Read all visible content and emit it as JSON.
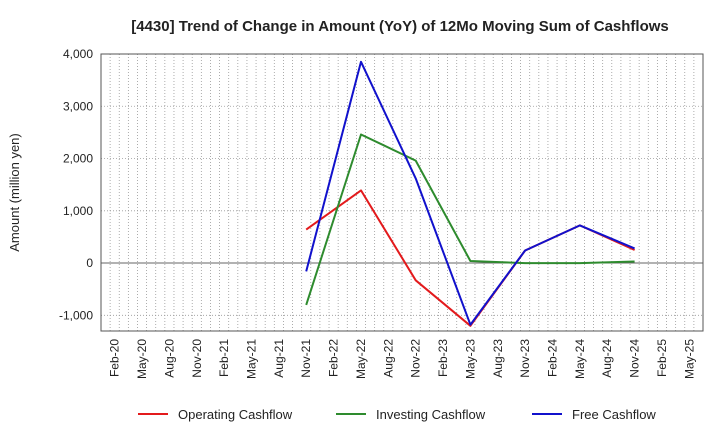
{
  "chart_data": {
    "type": "line",
    "title": "[4430]  Trend of Change in Amount (YoY) of 12Mo Moving Sum of Cashflows",
    "xlabel": "",
    "ylabel": "Amount (million yen)",
    "ylim": [
      -1300,
      4000
    ],
    "yticks": [
      -1000,
      0,
      1000,
      2000,
      3000,
      4000
    ],
    "ytick_labels": [
      "-1,000",
      "0",
      "1,000",
      "2,000",
      "3,000",
      "4,000"
    ],
    "categories": [
      "Feb-20",
      "May-20",
      "Aug-20",
      "Nov-20",
      "Feb-21",
      "May-21",
      "Aug-21",
      "Nov-21",
      "Feb-22",
      "May-22",
      "Aug-22",
      "Nov-22",
      "Feb-23",
      "May-23",
      "Aug-23",
      "Nov-23",
      "Feb-24",
      "May-24",
      "Aug-24",
      "Nov-24",
      "Feb-25",
      "May-25"
    ],
    "grid": true,
    "legend_position": "bottom",
    "series": [
      {
        "name": "Operating Cashflow",
        "color": "#e31a1c",
        "values": [
          null,
          null,
          null,
          null,
          null,
          null,
          null,
          640,
          null,
          1390,
          null,
          -330,
          null,
          -1200,
          null,
          240,
          null,
          720,
          null,
          250,
          null,
          null
        ]
      },
      {
        "name": "Investing Cashflow",
        "color": "#2e8b2e",
        "values": [
          null,
          null,
          null,
          null,
          null,
          null,
          null,
          -800,
          null,
          2460,
          null,
          1960,
          null,
          40,
          null,
          0,
          null,
          0,
          null,
          30,
          null,
          null
        ]
      },
      {
        "name": "Free Cashflow",
        "color": "#1111cc",
        "values": [
          null,
          null,
          null,
          null,
          null,
          null,
          null,
          -160,
          null,
          3850,
          null,
          1620,
          null,
          -1180,
          null,
          240,
          null,
          720,
          null,
          280,
          null,
          null
        ]
      }
    ]
  }
}
